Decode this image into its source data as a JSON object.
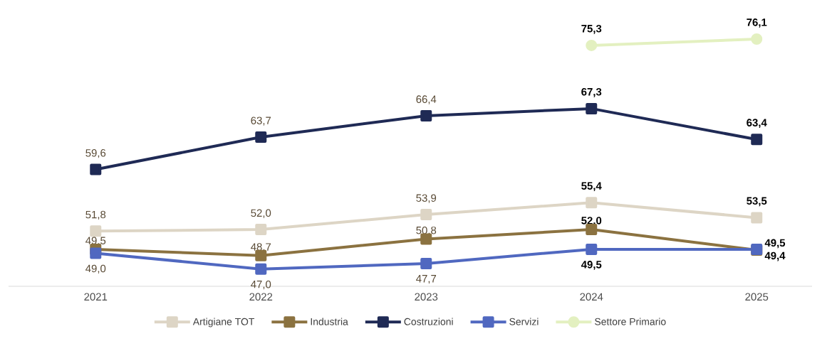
{
  "chart_data": {
    "type": "line",
    "categories": [
      "2021",
      "2022",
      "2023",
      "2024",
      "2025"
    ],
    "legend": "bottom",
    "marker": "square",
    "line_style": "solid",
    "grid": false,
    "series": [
      {
        "name": "Artigiane TOT",
        "color": "#ddd5c5",
        "values": [
          51.8,
          52.0,
          53.9,
          55.4,
          53.5
        ],
        "value_labels": [
          "51,8",
          "52,0",
          "53,9",
          "55,4",
          "53,5"
        ]
      },
      {
        "name": "Industria",
        "color": "#8b7240",
        "values": [
          49.5,
          48.7,
          50.8,
          52.0,
          49.4
        ],
        "value_labels": [
          "49,5",
          "48,7",
          "50,8",
          "52,0",
          "49,4"
        ]
      },
      {
        "name": "Costruzioni",
        "color": "#1f2a55",
        "values": [
          59.6,
          63.7,
          66.4,
          67.3,
          63.4
        ],
        "value_labels": [
          "59,6",
          "63,7",
          "66,4",
          "67,3",
          "63,4"
        ]
      },
      {
        "name": "Servizi",
        "color": "#5068c0",
        "values": [
          49.0,
          47.0,
          47.7,
          49.5,
          49.5
        ],
        "value_labels": [
          "49,0",
          "47,0",
          "47,7",
          "49,5",
          "49,5"
        ]
      },
      {
        "name": "Settore Primario",
        "color": "#e3f0c0",
        "marker": "circle",
        "values": [
          null,
          null,
          null,
          75.3,
          76.1
        ],
        "value_labels": [
          null,
          null,
          null,
          "75,3",
          "76,1"
        ]
      }
    ]
  }
}
